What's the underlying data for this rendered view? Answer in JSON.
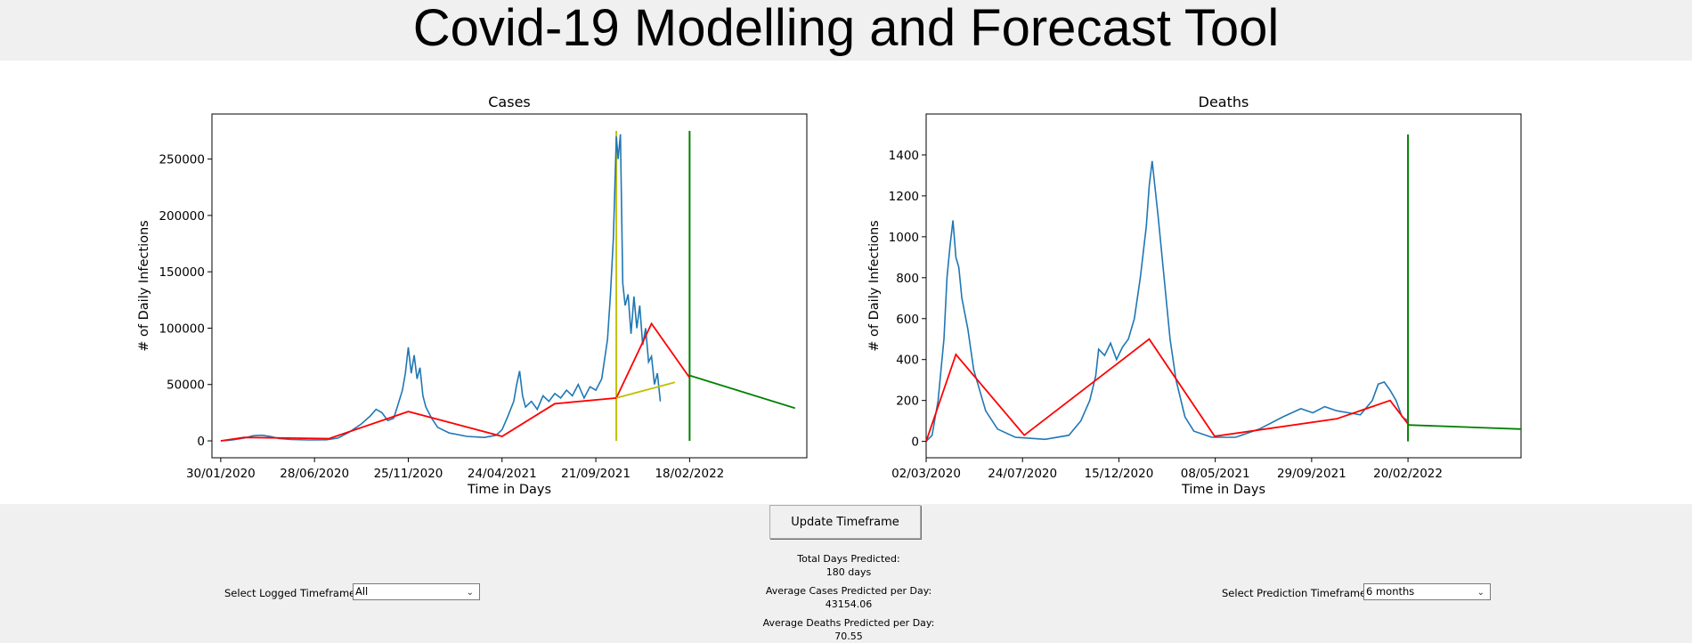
{
  "app": {
    "title": "Covid-19 Modelling and Forecast Tool"
  },
  "colors": {
    "logged": "#1f77b4",
    "model": "#ff0000",
    "forecast": "#008000",
    "alt_model": "#bfbf00"
  },
  "controls": {
    "update_label": "Update Timeframe",
    "logged_label": "Select Logged Timeframe:",
    "logged_value": "All",
    "prediction_label": "Select Prediction Timeframe:",
    "prediction_value": "6 months"
  },
  "stats": {
    "total_days_label": "Total Days Predicted:",
    "total_days_value": "180 days",
    "avg_cases_label": "Average Cases Predicted per Day:",
    "avg_cases_value": "43154.06",
    "avg_deaths_label": "Average Deaths Predicted per Day:",
    "avg_deaths_value": "70.55"
  },
  "chart_data": [
    {
      "type": "line",
      "title": "Cases",
      "xlabel": "Time in Days",
      "ylabel": "# of Daily Infections",
      "x_tick_labels": [
        "30/01/2020",
        "28/06/2020",
        "25/11/2020",
        "24/04/2021",
        "21/09/2021",
        "18/02/2022"
      ],
      "y_ticks": [
        "0",
        "50000",
        "100000",
        "150000",
        "200000",
        "250000"
      ],
      "xlim": [
        -15,
        1000
      ],
      "ylim": [
        -15000,
        290000
      ],
      "series": [
        {
          "role": "logged",
          "color": "#1f77b4",
          "points": [
            [
              0,
              0
            ],
            [
              20,
              800
            ],
            [
              40,
              2500
            ],
            [
              55,
              4500
            ],
            [
              70,
              5000
            ],
            [
              85,
              3800
            ],
            [
              100,
              2000
            ],
            [
              120,
              1200
            ],
            [
              150,
              800
            ],
            [
              180,
              1000
            ],
            [
              200,
              2500
            ],
            [
              220,
              8000
            ],
            [
              240,
              15000
            ],
            [
              255,
              22000
            ],
            [
              265,
              28000
            ],
            [
              275,
              25000
            ],
            [
              285,
              18000
            ],
            [
              295,
              20000
            ],
            [
              300,
              28000
            ],
            [
              310,
              45000
            ],
            [
              315,
              60000
            ],
            [
              320,
              83000
            ],
            [
              325,
              60000
            ],
            [
              330,
              76000
            ],
            [
              335,
              55000
            ],
            [
              340,
              65000
            ],
            [
              345,
              40000
            ],
            [
              350,
              30000
            ],
            [
              360,
              20000
            ],
            [
              370,
              12000
            ],
            [
              390,
              7000
            ],
            [
              420,
              4000
            ],
            [
              450,
              3000
            ],
            [
              470,
              5000
            ],
            [
              480,
              10000
            ],
            [
              490,
              22000
            ],
            [
              500,
              35000
            ],
            [
              505,
              50000
            ],
            [
              510,
              62000
            ],
            [
              515,
              40000
            ],
            [
              520,
              30000
            ],
            [
              530,
              35000
            ],
            [
              540,
              28000
            ],
            [
              550,
              40000
            ],
            [
              560,
              35000
            ],
            [
              570,
              42000
            ],
            [
              580,
              38000
            ],
            [
              590,
              45000
            ],
            [
              600,
              40000
            ],
            [
              610,
              50000
            ],
            [
              620,
              38000
            ],
            [
              630,
              48000
            ],
            [
              640,
              45000
            ],
            [
              650,
              55000
            ],
            [
              660,
              90000
            ],
            [
              665,
              130000
            ],
            [
              670,
              180000
            ],
            [
              675,
              270000
            ],
            [
              678,
              250000
            ],
            [
              682,
              272000
            ],
            [
              686,
              140000
            ],
            [
              690,
              120000
            ],
            [
              695,
              130000
            ],
            [
              700,
              95000
            ],
            [
              705,
              128000
            ],
            [
              710,
              100000
            ],
            [
              715,
              120000
            ],
            [
              720,
              85000
            ],
            [
              725,
              100000
            ],
            [
              730,
              70000
            ],
            [
              735,
              75000
            ],
            [
              740,
              50000
            ],
            [
              745,
              60000
            ],
            [
              750,
              35000
            ]
          ]
        },
        {
          "role": "model",
          "color": "#ff0000",
          "points": [
            [
              0,
              0
            ],
            [
              40,
              3000
            ],
            [
              185,
              2000
            ],
            [
              320,
              26000
            ],
            [
              480,
              4000
            ],
            [
              570,
              33000
            ],
            [
              675,
              38000
            ],
            [
              735,
              104000
            ],
            [
              800,
              56000
            ]
          ]
        },
        {
          "role": "alt_model",
          "color": "#bfbf00",
          "points": [
            [
              675,
              38000
            ],
            [
              775,
              52000
            ]
          ]
        },
        {
          "role": "forecast",
          "color": "#008000",
          "points": [
            [
              800,
              58000
            ],
            [
              980,
              29000
            ]
          ]
        }
      ],
      "vlines": [
        {
          "x": 675,
          "color": "#bfbf00",
          "ymin": 0,
          "ymax": 275000
        },
        {
          "x": 800,
          "color": "#008000",
          "ymin": 0,
          "ymax": 275000
        }
      ]
    },
    {
      "type": "line",
      "title": "Deaths",
      "xlabel": "Time in Days",
      "ylabel": "# of Daily Infections",
      "x_tick_labels": [
        "02/03/2020",
        "24/07/2020",
        "15/12/2020",
        "08/05/2021",
        "29/09/2021",
        "20/02/2022"
      ],
      "y_ticks": [
        "0",
        "200",
        "400",
        "600",
        "800",
        "1000",
        "1200",
        "1400"
      ],
      "xlim": [
        0,
        1000
      ],
      "ylim": [
        -80,
        1600
      ],
      "series": [
        {
          "role": "logged",
          "color": "#1f77b4",
          "points": [
            [
              0,
              0
            ],
            [
              10,
              30
            ],
            [
              20,
              200
            ],
            [
              30,
              500
            ],
            [
              35,
              800
            ],
            [
              40,
              950
            ],
            [
              45,
              1080
            ],
            [
              50,
              900
            ],
            [
              55,
              850
            ],
            [
              60,
              700
            ],
            [
              70,
              550
            ],
            [
              80,
              350
            ],
            [
              90,
              250
            ],
            [
              100,
              150
            ],
            [
              120,
              60
            ],
            [
              150,
              20
            ],
            [
              200,
              10
            ],
            [
              240,
              30
            ],
            [
              260,
              100
            ],
            [
              275,
              200
            ],
            [
              285,
              320
            ],
            [
              290,
              450
            ],
            [
              300,
              420
            ],
            [
              310,
              480
            ],
            [
              320,
              400
            ],
            [
              330,
              460
            ],
            [
              340,
              500
            ],
            [
              350,
              600
            ],
            [
              360,
              800
            ],
            [
              370,
              1050
            ],
            [
              375,
              1250
            ],
            [
              380,
              1370
            ],
            [
              390,
              1100
            ],
            [
              400,
              800
            ],
            [
              410,
              500
            ],
            [
              420,
              300
            ],
            [
              435,
              120
            ],
            [
              450,
              50
            ],
            [
              480,
              20
            ],
            [
              520,
              20
            ],
            [
              560,
              60
            ],
            [
              600,
              120
            ],
            [
              630,
              160
            ],
            [
              650,
              140
            ],
            [
              670,
              170
            ],
            [
              690,
              150
            ],
            [
              710,
              140
            ],
            [
              730,
              130
            ],
            [
              750,
              200
            ],
            [
              760,
              280
            ],
            [
              770,
              290
            ],
            [
              780,
              250
            ],
            [
              790,
              200
            ],
            [
              800,
              120
            ],
            [
              810,
              100
            ]
          ]
        },
        {
          "role": "model",
          "color": "#ff0000",
          "points": [
            [
              0,
              0
            ],
            [
              50,
              425
            ],
            [
              165,
              30
            ],
            [
              375,
              500
            ],
            [
              485,
              25
            ],
            [
              690,
              110
            ],
            [
              780,
              200
            ],
            [
              810,
              85
            ]
          ]
        },
        {
          "role": "forecast",
          "color": "#008000",
          "points": [
            [
              810,
              80
            ],
            [
              1000,
              60
            ]
          ]
        }
      ],
      "vlines": [
        {
          "x": 810,
          "color": "#008000",
          "ymin": 0,
          "ymax": 1500
        }
      ]
    }
  ]
}
